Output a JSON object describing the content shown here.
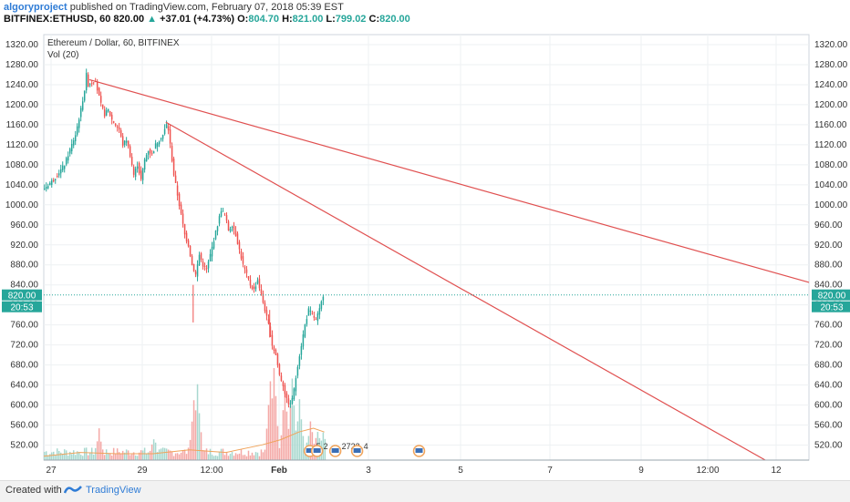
{
  "header": {
    "author": "algoryproject",
    "published": "published on TradingView.com, February 07, 2018 05:39 EST",
    "symbol": "BITFINEX:ETHUSD, 60",
    "last": "820.00",
    "change": "+37.01 (+4.73%)",
    "o_label": "O:",
    "o_val": "804.70",
    "h_label": "H:",
    "h_val": "821.00",
    "l_label": "L:",
    "l_val": "799.02",
    "c_label": "C:",
    "c_val": "820.00"
  },
  "legend": {
    "title": "Ethereum / Dollar, 60, BITFINEX",
    "indicator": "Vol (20)"
  },
  "footer": {
    "created_with": "Created with",
    "brand": "TradingView"
  },
  "colors": {
    "up": "#26a69a",
    "down": "#ef5350",
    "trendline": "#e05050",
    "volume_up": "#a8d8cf",
    "volume_down": "#f4a9a7",
    "volume_ma": "#f0a35a",
    "price_line": "#26a69a",
    "accent": "#2f7cd6"
  },
  "chart_data": {
    "type": "candlestick",
    "title": "Ethereum / Dollar, 60, BITFINEX",
    "ylim": [
      490,
      1340
    ],
    "y_ticks": [
      "1320.00",
      "1280.00",
      "1240.00",
      "1200.00",
      "1160.00",
      "1120.00",
      "1080.00",
      "1040.00",
      "1000.00",
      "960.00",
      "920.00",
      "880.00",
      "840.00",
      "800.00",
      "760.00",
      "720.00",
      "680.00",
      "640.00",
      "600.00",
      "560.00",
      "520.00"
    ],
    "x_ticks": [
      "27",
      "29",
      "12:00",
      "Feb",
      "3",
      "5",
      "7",
      "9",
      "12:00",
      "12"
    ],
    "last_price": "820.00",
    "countdown": "20:53",
    "price_path": [
      [
        0,
        1030
      ],
      [
        3,
        1040
      ],
      [
        6,
        1050
      ],
      [
        9,
        1065
      ],
      [
        12,
        1080
      ],
      [
        15,
        1110
      ],
      [
        18,
        1140
      ],
      [
        21,
        1190
      ],
      [
        23,
        1230
      ],
      [
        24,
        1260
      ],
      [
        25,
        1240
      ],
      [
        27,
        1245
      ],
      [
        29,
        1250
      ],
      [
        30,
        1230
      ],
      [
        32,
        1200
      ],
      [
        34,
        1180
      ],
      [
        36,
        1190
      ],
      [
        38,
        1170
      ],
      [
        40,
        1160
      ],
      [
        42,
        1150
      ],
      [
        44,
        1120
      ],
      [
        46,
        1130
      ],
      [
        48,
        1100
      ],
      [
        50,
        1060
      ],
      [
        52,
        1080
      ],
      [
        54,
        1050
      ],
      [
        56,
        1090
      ],
      [
        58,
        1110
      ],
      [
        60,
        1100
      ],
      [
        62,
        1120
      ],
      [
        64,
        1130
      ],
      [
        66,
        1140
      ],
      [
        68,
        1160
      ],
      [
        69,
        1150
      ],
      [
        70,
        1120
      ],
      [
        72,
        1060
      ],
      [
        74,
        1020
      ],
      [
        76,
        980
      ],
      [
        78,
        940
      ],
      [
        80,
        920
      ],
      [
        82,
        880
      ],
      [
        84,
        860
      ],
      [
        86,
        900
      ],
      [
        88,
        880
      ],
      [
        90,
        870
      ],
      [
        92,
        900
      ],
      [
        94,
        930
      ],
      [
        96,
        960
      ],
      [
        98,
        990
      ],
      [
        100,
        980
      ],
      [
        102,
        950
      ],
      [
        104,
        960
      ],
      [
        106,
        940
      ],
      [
        108,
        910
      ],
      [
        110,
        880
      ],
      [
        112,
        860
      ],
      [
        114,
        840
      ],
      [
        116,
        830
      ],
      [
        118,
        850
      ],
      [
        120,
        820
      ],
      [
        122,
        790
      ],
      [
        124,
        760
      ],
      [
        126,
        720
      ],
      [
        128,
        700
      ],
      [
        130,
        660
      ],
      [
        132,
        640
      ],
      [
        134,
        610
      ],
      [
        136,
        600
      ],
      [
        138,
        630
      ],
      [
        140,
        680
      ],
      [
        142,
        720
      ],
      [
        144,
        760
      ],
      [
        146,
        790
      ],
      [
        148,
        780
      ],
      [
        150,
        770
      ],
      [
        152,
        790
      ],
      [
        153,
        805
      ],
      [
        154,
        820
      ]
    ],
    "candle_range_hours": [
      0,
      154
    ],
    "x_range_hours": [
      0,
      420
    ],
    "trendlines": [
      {
        "from": [
          25,
          1250
        ],
        "to": [
          420,
          845
        ]
      },
      {
        "from": [
          67,
          1165
        ],
        "to": [
          396,
          490
        ]
      }
    ],
    "volume_ma_path": [
      [
        0,
        0.03
      ],
      [
        20,
        0.06
      ],
      [
        40,
        0.05
      ],
      [
        60,
        0.05
      ],
      [
        80,
        0.08
      ],
      [
        100,
        0.06
      ],
      [
        120,
        0.12
      ],
      [
        130,
        0.16
      ],
      [
        140,
        0.22
      ],
      [
        148,
        0.25
      ],
      [
        154,
        0.22
      ]
    ],
    "volume_spikes": [
      [
        30,
        0.2
      ],
      [
        60,
        0.15
      ],
      [
        82,
        0.42
      ],
      [
        84,
        0.55
      ],
      [
        124,
        0.6
      ],
      [
        126,
        0.72
      ],
      [
        132,
        0.52
      ],
      [
        136,
        0.6
      ],
      [
        140,
        0.45
      ],
      [
        146,
        0.28
      ],
      [
        150,
        0.22
      ],
      [
        153,
        0.18
      ]
    ],
    "events": [
      {
        "x": 146,
        "label": "5"
      },
      {
        "x": 150,
        "label": "2"
      },
      {
        "x": 160,
        "label": "2722"
      },
      {
        "x": 172,
        "label": "4"
      },
      {
        "x": 206,
        "label": ""
      }
    ]
  }
}
